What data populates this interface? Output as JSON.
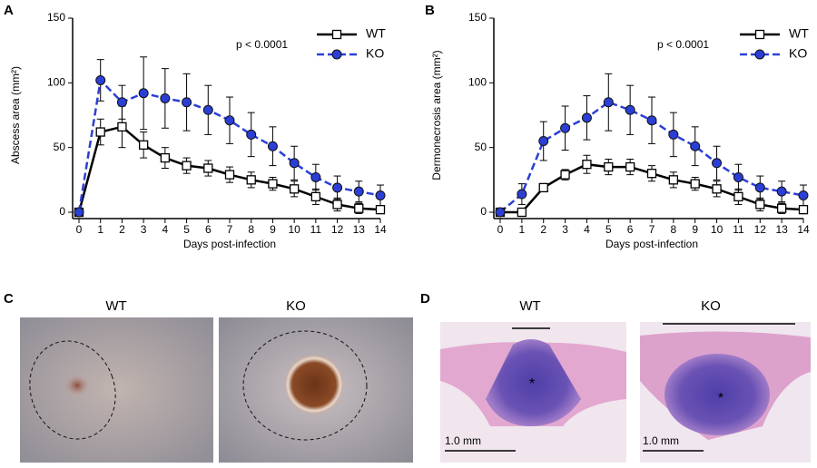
{
  "chart_data": [
    {
      "type": "line",
      "panel": "A",
      "ylabel": "Abscess area (mm²)",
      "xlabel": "Days post-infection",
      "annotation": "p < 0.0001",
      "x": [
        0,
        1,
        2,
        3,
        4,
        5,
        6,
        7,
        8,
        9,
        10,
        11,
        12,
        13,
        14
      ],
      "xlim": [
        0,
        14
      ],
      "xticks": [
        0,
        1,
        2,
        3,
        4,
        5,
        6,
        7,
        8,
        9,
        10,
        11,
        12,
        13,
        14
      ],
      "ylim": [
        0,
        150
      ],
      "yticks": [
        0,
        50,
        100,
        150
      ],
      "grid": false,
      "legend": "upper right",
      "series": [
        {
          "name": "WT",
          "color": "#000000",
          "marker": "square",
          "linestyle": "solid",
          "values": [
            0,
            62,
            66,
            52,
            42,
            36,
            34,
            29,
            25,
            22,
            18,
            12,
            6,
            3,
            2
          ],
          "errors": [
            0,
            10,
            16,
            10,
            8,
            6,
            6,
            6,
            6,
            5,
            6,
            6,
            5,
            4,
            3
          ]
        },
        {
          "name": "KO",
          "color": "#2b3fd6",
          "marker": "circle",
          "linestyle": "dashed",
          "values": [
            0,
            102,
            85,
            92,
            88,
            85,
            79,
            71,
            60,
            51,
            38,
            27,
            19,
            16,
            13
          ],
          "errors": [
            0,
            16,
            13,
            28,
            23,
            22,
            19,
            18,
            17,
            15,
            13,
            10,
            9,
            8,
            8
          ]
        }
      ]
    },
    {
      "type": "line",
      "panel": "B",
      "ylabel": "Dermonecrosis area (mm²)",
      "xlabel": "Days post-infection",
      "annotation": "p < 0.0001",
      "x": [
        0,
        1,
        2,
        3,
        4,
        5,
        6,
        7,
        8,
        9,
        10,
        11,
        12,
        13,
        14
      ],
      "xlim": [
        0,
        14
      ],
      "xticks": [
        0,
        1,
        2,
        3,
        4,
        5,
        6,
        7,
        8,
        9,
        10,
        11,
        12,
        13,
        14
      ],
      "ylim": [
        0,
        150
      ],
      "yticks": [
        0,
        50,
        100,
        150
      ],
      "grid": false,
      "legend": "upper right",
      "series": [
        {
          "name": "WT",
          "color": "#000000",
          "marker": "square",
          "linestyle": "solid",
          "values": [
            0,
            0,
            19,
            29,
            37,
            35,
            35,
            30,
            25,
            22,
            18,
            12,
            6,
            3,
            2
          ],
          "errors": [
            0,
            1,
            2,
            4,
            7,
            6,
            6,
            6,
            6,
            5,
            6,
            6,
            5,
            4,
            3
          ]
        },
        {
          "name": "KO",
          "color": "#2b3fd6",
          "marker": "circle",
          "linestyle": "dashed",
          "values": [
            0,
            14,
            55,
            65,
            73,
            85,
            79,
            71,
            60,
            51,
            38,
            27,
            19,
            16,
            13
          ],
          "errors": [
            0,
            8,
            15,
            17,
            17,
            22,
            19,
            18,
            17,
            15,
            13,
            10,
            9,
            8,
            8
          ]
        }
      ]
    }
  ],
  "panels": [
    {
      "label": "C",
      "images": [
        {
          "title": "WT"
        },
        {
          "title": "KO"
        }
      ]
    },
    {
      "label": "D",
      "images": [
        {
          "title": "WT",
          "scale_bar": "1.0 mm",
          "marker": "*"
        },
        {
          "title": "KO",
          "scale_bar": "1.0 mm",
          "marker": "*"
        }
      ]
    }
  ]
}
